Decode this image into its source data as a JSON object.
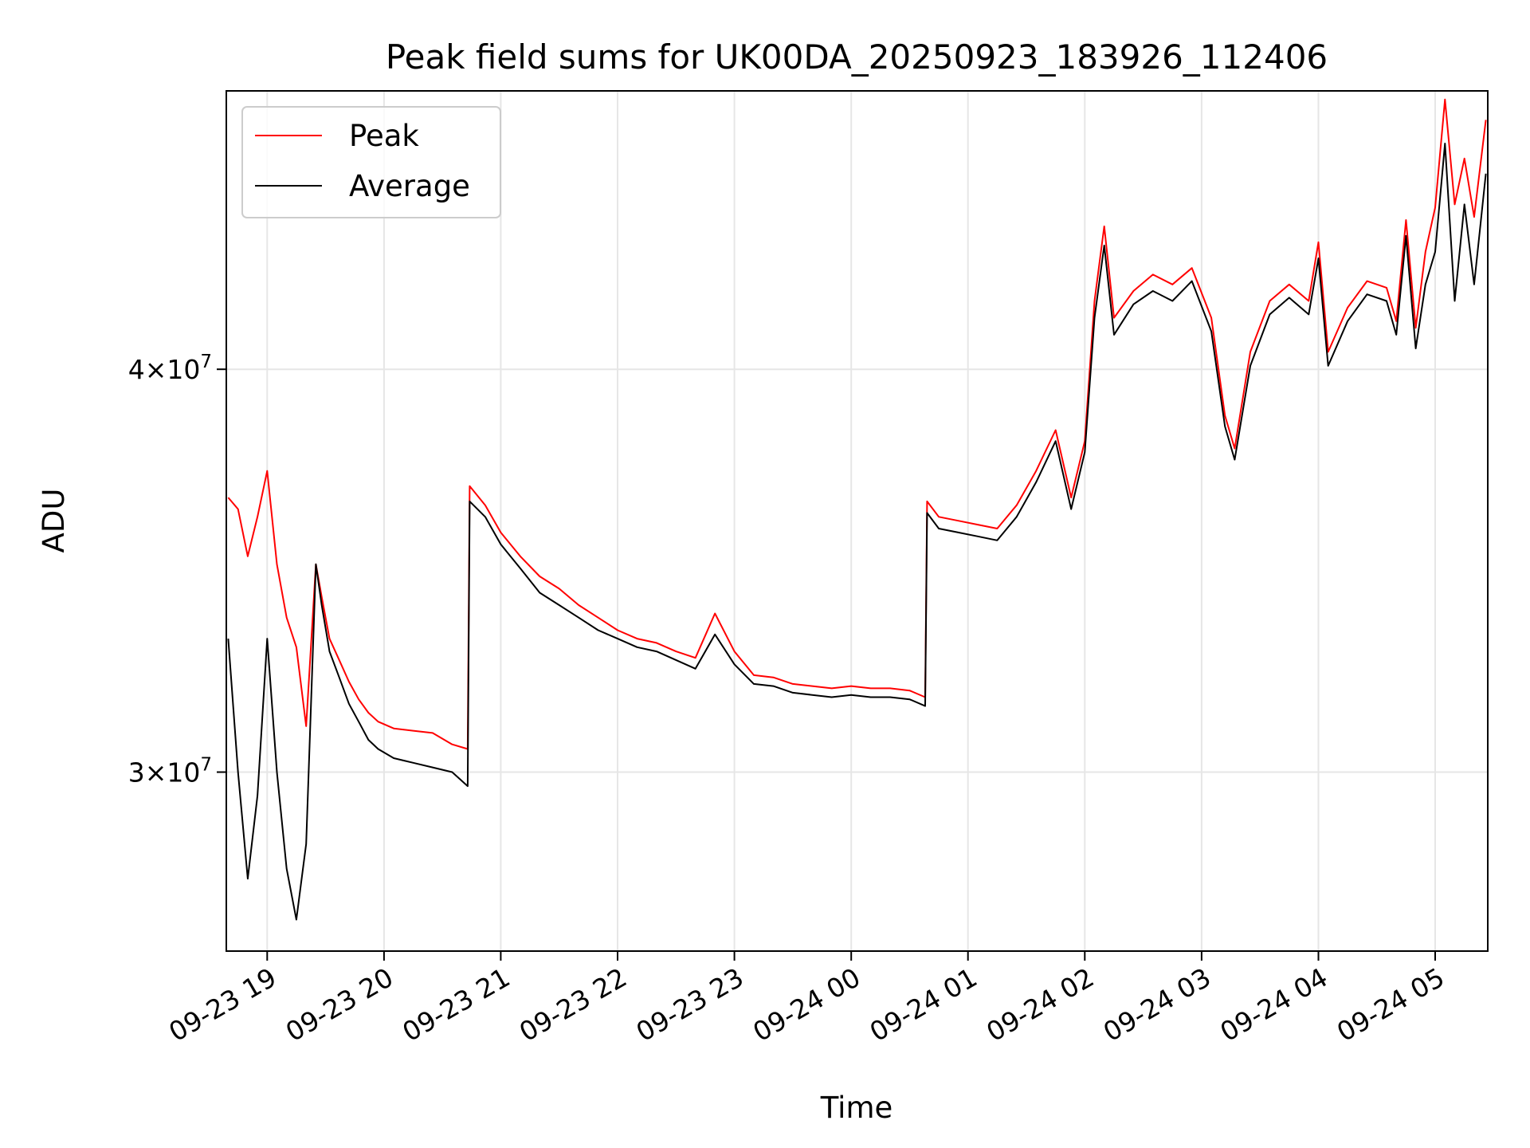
{
  "chart_data": {
    "type": "line",
    "title": "Peak field sums for UK00DA_20250923_183926_112406",
    "xlabel": "Time",
    "ylabel": "ADU",
    "y_scale": "log",
    "ylim": [
      26400000,
      48800000
    ],
    "xlim": [
      "2025-09-23 18:39",
      "2025-09-24 05:27"
    ],
    "grid": true,
    "legend_position": "upper left",
    "x_ticks": [
      {
        "time": "2025-09-23 19:00",
        "label": "09-23 19"
      },
      {
        "time": "2025-09-23 20:00",
        "label": "09-23 20"
      },
      {
        "time": "2025-09-23 21:00",
        "label": "09-23 21"
      },
      {
        "time": "2025-09-23 22:00",
        "label": "09-23 22"
      },
      {
        "time": "2025-09-23 23:00",
        "label": "09-23 23"
      },
      {
        "time": "2025-09-24 00:00",
        "label": "09-24 00"
      },
      {
        "time": "2025-09-24 01:00",
        "label": "09-24 01"
      },
      {
        "time": "2025-09-24 02:00",
        "label": "09-24 02"
      },
      {
        "time": "2025-09-24 03:00",
        "label": "09-24 03"
      },
      {
        "time": "2025-09-24 04:00",
        "label": "09-24 04"
      },
      {
        "time": "2025-09-24 05:00",
        "label": "09-24 05"
      }
    ],
    "y_ticks": [
      {
        "value": 30000000,
        "mantissa": "3",
        "exponent": "7"
      },
      {
        "value": 40000000,
        "mantissa": "4",
        "exponent": "7"
      }
    ],
    "series": [
      {
        "name": "Peak",
        "color": "#ff0000",
        "points": [
          [
            "2025-09-23 18:40",
            36500000
          ],
          [
            "2025-09-23 18:45",
            36200000
          ],
          [
            "2025-09-23 18:50",
            35000000
          ],
          [
            "2025-09-23 18:55",
            36000000
          ],
          [
            "2025-09-23 19:00",
            37200000
          ],
          [
            "2025-09-23 19:05",
            34800000
          ],
          [
            "2025-09-23 19:10",
            33500000
          ],
          [
            "2025-09-23 19:15",
            32800000
          ],
          [
            "2025-09-23 19:20",
            31000000
          ],
          [
            "2025-09-23 19:25",
            34800000
          ],
          [
            "2025-09-23 19:28",
            34000000
          ],
          [
            "2025-09-23 19:32",
            33000000
          ],
          [
            "2025-09-23 19:37",
            32500000
          ],
          [
            "2025-09-23 19:42",
            32000000
          ],
          [
            "2025-09-23 19:47",
            31600000
          ],
          [
            "2025-09-23 19:52",
            31300000
          ],
          [
            "2025-09-23 19:57",
            31100000
          ],
          [
            "2025-09-23 20:05",
            30950000
          ],
          [
            "2025-09-23 20:15",
            30900000
          ],
          [
            "2025-09-23 20:25",
            30850000
          ],
          [
            "2025-09-23 20:35",
            30600000
          ],
          [
            "2025-09-23 20:43",
            30500000
          ],
          [
            "2025-09-23 20:44",
            36800000
          ],
          [
            "2025-09-23 20:52",
            36300000
          ],
          [
            "2025-09-23 21:00",
            35600000
          ],
          [
            "2025-09-23 21:10",
            35000000
          ],
          [
            "2025-09-23 21:20",
            34500000
          ],
          [
            "2025-09-23 21:30",
            34200000
          ],
          [
            "2025-09-23 21:40",
            33800000
          ],
          [
            "2025-09-23 21:50",
            33500000
          ],
          [
            "2025-09-23 22:00",
            33200000
          ],
          [
            "2025-09-23 22:10",
            33000000
          ],
          [
            "2025-09-23 22:20",
            32900000
          ],
          [
            "2025-09-23 22:30",
            32700000
          ],
          [
            "2025-09-23 22:40",
            32550000
          ],
          [
            "2025-09-23 22:50",
            33600000
          ],
          [
            "2025-09-23 23:00",
            32700000
          ],
          [
            "2025-09-23 23:10",
            32150000
          ],
          [
            "2025-09-23 23:20",
            32100000
          ],
          [
            "2025-09-23 23:30",
            31950000
          ],
          [
            "2025-09-23 23:40",
            31900000
          ],
          [
            "2025-09-23 23:50",
            31850000
          ],
          [
            "2025-09-24 00:00",
            31900000
          ],
          [
            "2025-09-24 00:10",
            31850000
          ],
          [
            "2025-09-24 00:20",
            31850000
          ],
          [
            "2025-09-24 00:30",
            31800000
          ],
          [
            "2025-09-24 00:38",
            31650000
          ],
          [
            "2025-09-24 00:39",
            36400000
          ],
          [
            "2025-09-24 00:45",
            36000000
          ],
          [
            "2025-09-24 00:55",
            35900000
          ],
          [
            "2025-09-24 01:05",
            35800000
          ],
          [
            "2025-09-24 01:15",
            35700000
          ],
          [
            "2025-09-24 01:25",
            36300000
          ],
          [
            "2025-09-24 01:35",
            37200000
          ],
          [
            "2025-09-24 01:45",
            38300000
          ],
          [
            "2025-09-24 01:53",
            36500000
          ],
          [
            "2025-09-24 02:00",
            38000000
          ],
          [
            "2025-09-24 02:05",
            42000000
          ],
          [
            "2025-09-24 02:10",
            44300000
          ],
          [
            "2025-09-24 02:15",
            41500000
          ],
          [
            "2025-09-24 02:25",
            42300000
          ],
          [
            "2025-09-24 02:35",
            42800000
          ],
          [
            "2025-09-24 02:45",
            42500000
          ],
          [
            "2025-09-24 02:55",
            43000000
          ],
          [
            "2025-09-24 03:05",
            41500000
          ],
          [
            "2025-09-24 03:12",
            38700000
          ],
          [
            "2025-09-24 03:17",
            37800000
          ],
          [
            "2025-09-24 03:25",
            40500000
          ],
          [
            "2025-09-24 03:35",
            42000000
          ],
          [
            "2025-09-24 03:45",
            42500000
          ],
          [
            "2025-09-24 03:55",
            42000000
          ],
          [
            "2025-09-24 04:00",
            43800000
          ],
          [
            "2025-09-24 04:05",
            40500000
          ],
          [
            "2025-09-24 04:15",
            41800000
          ],
          [
            "2025-09-24 04:25",
            42600000
          ],
          [
            "2025-09-24 04:35",
            42400000
          ],
          [
            "2025-09-24 04:40",
            41400000
          ],
          [
            "2025-09-24 04:45",
            44500000
          ],
          [
            "2025-09-24 04:50",
            41200000
          ],
          [
            "2025-09-24 04:55",
            43500000
          ],
          [
            "2025-09-24 05:00",
            44900000
          ],
          [
            "2025-09-24 05:05",
            48500000
          ],
          [
            "2025-09-24 05:10",
            45000000
          ],
          [
            "2025-09-24 05:15",
            46500000
          ],
          [
            "2025-09-24 05:20",
            44600000
          ],
          [
            "2025-09-24 05:26",
            47800000
          ]
        ]
      },
      {
        "name": "Average",
        "color": "#000000",
        "points": [
          [
            "2025-09-23 18:40",
            33000000
          ],
          [
            "2025-09-23 18:45",
            30000000
          ],
          [
            "2025-09-23 18:50",
            27800000
          ],
          [
            "2025-09-23 18:55",
            29500000
          ],
          [
            "2025-09-23 19:00",
            33000000
          ],
          [
            "2025-09-23 19:05",
            30000000
          ],
          [
            "2025-09-23 19:10",
            28000000
          ],
          [
            "2025-09-23 19:15",
            27000000
          ],
          [
            "2025-09-23 19:20",
            28500000
          ],
          [
            "2025-09-23 19:25",
            34800000
          ],
          [
            "2025-09-23 19:28",
            33800000
          ],
          [
            "2025-09-23 19:32",
            32700000
          ],
          [
            "2025-09-23 19:37",
            32100000
          ],
          [
            "2025-09-23 19:42",
            31500000
          ],
          [
            "2025-09-23 19:47",
            31100000
          ],
          [
            "2025-09-23 19:52",
            30700000
          ],
          [
            "2025-09-23 19:57",
            30500000
          ],
          [
            "2025-09-23 20:05",
            30300000
          ],
          [
            "2025-09-23 20:15",
            30200000
          ],
          [
            "2025-09-23 20:25",
            30100000
          ],
          [
            "2025-09-23 20:35",
            30000000
          ],
          [
            "2025-09-23 20:43",
            29700000
          ],
          [
            "2025-09-23 20:44",
            36400000
          ],
          [
            "2025-09-23 20:52",
            36000000
          ],
          [
            "2025-09-23 21:00",
            35300000
          ],
          [
            "2025-09-23 21:10",
            34700000
          ],
          [
            "2025-09-23 21:20",
            34100000
          ],
          [
            "2025-09-23 21:30",
            33800000
          ],
          [
            "2025-09-23 21:40",
            33500000
          ],
          [
            "2025-09-23 21:50",
            33200000
          ],
          [
            "2025-09-23 22:00",
            33000000
          ],
          [
            "2025-09-23 22:10",
            32800000
          ],
          [
            "2025-09-23 22:20",
            32700000
          ],
          [
            "2025-09-23 22:30",
            32500000
          ],
          [
            "2025-09-23 22:40",
            32300000
          ],
          [
            "2025-09-23 22:50",
            33100000
          ],
          [
            "2025-09-23 23:00",
            32400000
          ],
          [
            "2025-09-23 23:10",
            31950000
          ],
          [
            "2025-09-23 23:20",
            31900000
          ],
          [
            "2025-09-23 23:30",
            31750000
          ],
          [
            "2025-09-23 23:40",
            31700000
          ],
          [
            "2025-09-23 23:50",
            31650000
          ],
          [
            "2025-09-24 00:00",
            31700000
          ],
          [
            "2025-09-24 00:10",
            31650000
          ],
          [
            "2025-09-24 00:20",
            31650000
          ],
          [
            "2025-09-24 00:30",
            31600000
          ],
          [
            "2025-09-24 00:38",
            31450000
          ],
          [
            "2025-09-24 00:39",
            36100000
          ],
          [
            "2025-09-24 00:45",
            35700000
          ],
          [
            "2025-09-24 00:55",
            35600000
          ],
          [
            "2025-09-24 01:05",
            35500000
          ],
          [
            "2025-09-24 01:15",
            35400000
          ],
          [
            "2025-09-24 01:25",
            36000000
          ],
          [
            "2025-09-24 01:35",
            36900000
          ],
          [
            "2025-09-24 01:45",
            38000000
          ],
          [
            "2025-09-24 01:53",
            36200000
          ],
          [
            "2025-09-24 02:00",
            37700000
          ],
          [
            "2025-09-24 02:05",
            41500000
          ],
          [
            "2025-09-24 02:10",
            43700000
          ],
          [
            "2025-09-24 02:15",
            41000000
          ],
          [
            "2025-09-24 02:25",
            41900000
          ],
          [
            "2025-09-24 02:35",
            42300000
          ],
          [
            "2025-09-24 02:45",
            42000000
          ],
          [
            "2025-09-24 02:55",
            42600000
          ],
          [
            "2025-09-24 03:05",
            41100000
          ],
          [
            "2025-09-24 03:12",
            38400000
          ],
          [
            "2025-09-24 03:17",
            37500000
          ],
          [
            "2025-09-24 03:25",
            40100000
          ],
          [
            "2025-09-24 03:35",
            41600000
          ],
          [
            "2025-09-24 03:45",
            42100000
          ],
          [
            "2025-09-24 03:55",
            41600000
          ],
          [
            "2025-09-24 04:00",
            43300000
          ],
          [
            "2025-09-24 04:05",
            40100000
          ],
          [
            "2025-09-24 04:15",
            41400000
          ],
          [
            "2025-09-24 04:25",
            42200000
          ],
          [
            "2025-09-24 04:35",
            42000000
          ],
          [
            "2025-09-24 04:40",
            41000000
          ],
          [
            "2025-09-24 04:45",
            44000000
          ],
          [
            "2025-09-24 04:50",
            40600000
          ],
          [
            "2025-09-24 04:55",
            42500000
          ],
          [
            "2025-09-24 05:00",
            43500000
          ],
          [
            "2025-09-24 05:05",
            47000000
          ],
          [
            "2025-09-24 05:10",
            42000000
          ],
          [
            "2025-09-24 05:15",
            45000000
          ],
          [
            "2025-09-24 05:20",
            42500000
          ],
          [
            "2025-09-24 05:26",
            46000000
          ]
        ]
      }
    ]
  }
}
